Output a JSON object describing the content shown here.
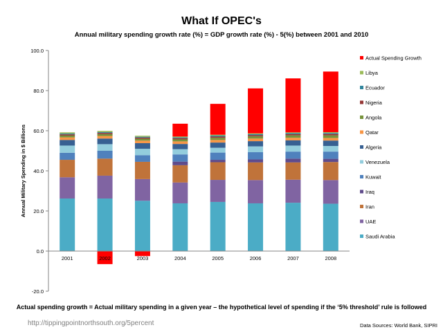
{
  "chart_data": {
    "type": "bar",
    "stacked": true,
    "title": "What If OPEC's",
    "subtitle": "Annual military spending growth rate (%) = GDP growth rate (%) - 5(%)  between 2001 and 2010",
    "xlabel": "",
    "ylabel": "Annual Military Spending in $ Billions",
    "ylim": [
      -20,
      100
    ],
    "yticks": [
      "-20.0",
      "0.0",
      "20.0",
      "40.0",
      "60.0",
      "80.0",
      "100.0"
    ],
    "grid": false,
    "legend_position": "right",
    "categories": [
      "2001",
      "2002",
      "2003",
      "2004",
      "2005",
      "2006",
      "2007",
      "2008"
    ],
    "series": [
      {
        "name": "Saudi Arabia",
        "color": "#4bacc6",
        "values": [
          26.2,
          26.2,
          25.1,
          23.8,
          24.5,
          23.8,
          24.1,
          23.6
        ]
      },
      {
        "name": "UAE",
        "color": "#8064a2",
        "values": [
          10.6,
          11.4,
          10.8,
          10.4,
          11.0,
          11.6,
          11.5,
          11.8
        ]
      },
      {
        "name": "Iran",
        "color": "#c0733a",
        "values": [
          8.7,
          8.5,
          8.6,
          8.6,
          8.8,
          8.8,
          8.6,
          9.0
        ]
      },
      {
        "name": "Iraq",
        "color": "#5f4b8b",
        "values": [
          0.0,
          0.0,
          0.0,
          1.8,
          1.2,
          1.5,
          1.9,
          1.6
        ]
      },
      {
        "name": "Kuwait",
        "color": "#4f81bd",
        "values": [
          3.5,
          3.9,
          3.3,
          3.6,
          3.6,
          3.6,
          3.5,
          3.6
        ]
      },
      {
        "name": "Venezuela",
        "color": "#93cddd",
        "values": [
          3.6,
          3.3,
          3.2,
          2.6,
          2.4,
          2.9,
          3.0,
          2.8
        ]
      },
      {
        "name": "Algeria",
        "color": "#376092",
        "values": [
          2.8,
          2.8,
          2.8,
          2.6,
          2.6,
          2.6,
          2.6,
          2.7
        ]
      },
      {
        "name": "Qatar",
        "color": "#f79646",
        "values": [
          1.3,
          1.3,
          1.3,
          1.3,
          1.3,
          1.3,
          1.3,
          1.3
        ]
      },
      {
        "name": "Angola",
        "color": "#77933c",
        "values": [
          0.9,
          0.9,
          0.9,
          1.0,
          1.1,
          1.1,
          1.2,
          1.3
        ]
      },
      {
        "name": "Nigeria",
        "color": "#953735",
        "values": [
          0.6,
          0.6,
          0.6,
          0.6,
          0.6,
          0.6,
          0.6,
          0.7
        ]
      },
      {
        "name": "Ecuador",
        "color": "#31859c",
        "values": [
          0.4,
          0.4,
          0.4,
          0.4,
          0.5,
          0.5,
          0.5,
          0.5
        ]
      },
      {
        "name": "Libya",
        "color": "#9bbb59",
        "values": [
          0.6,
          0.6,
          0.5,
          0.4,
          0.4,
          0.4,
          0.4,
          0.4
        ]
      },
      {
        "name": "Actual Spending Growth",
        "color": "#ff0000",
        "values": [
          0.0,
          -6.5,
          -2.5,
          6.4,
          15.4,
          22.4,
          26.9,
          30.2
        ]
      }
    ],
    "legend_order": [
      "Actual Spending Growth",
      "Libya",
      "Ecuador",
      "Nigeria",
      "Angola",
      "Qatar",
      "Algeria",
      "Venezuela",
      "Kuwait",
      "Iraq",
      "Iran",
      "UAE",
      "Saudi Arabia"
    ]
  },
  "footnote": "Actual spending growth = Actual military spending in a given year – the hypothetical level of spending if the ‘5% threshold’ rule is followed",
  "source_url": "http://tippingpointnorthsouth.org/5percent",
  "data_sources": "Data Sources: World Bank, SIPRI"
}
